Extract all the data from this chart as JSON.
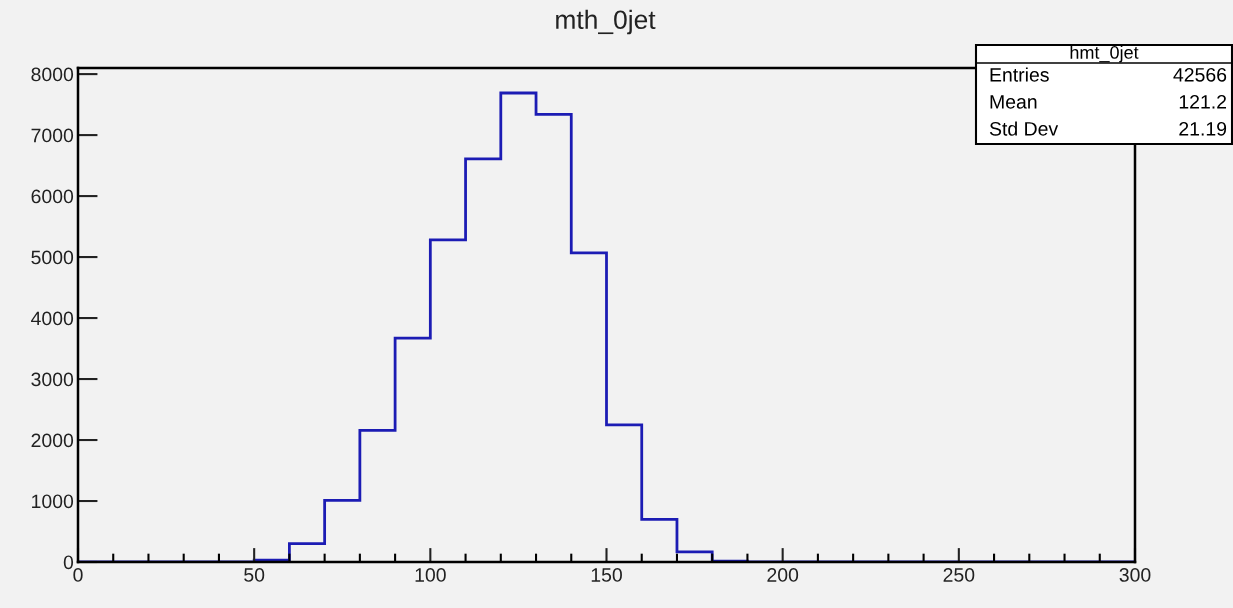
{
  "chart_data": {
    "type": "histogram",
    "title": "mth_0jet",
    "bins": [
      0,
      10,
      20,
      30,
      40,
      50,
      60,
      70,
      80,
      90,
      100,
      110,
      120,
      130,
      140,
      150,
      160,
      170,
      180,
      190,
      200,
      210,
      220,
      230,
      240,
      250,
      260,
      270,
      280,
      290,
      300
    ],
    "values": [
      0,
      0,
      0,
      0,
      0,
      30,
      300,
      1010,
      2160,
      3670,
      5280,
      6610,
      7690,
      7340,
      5070,
      2250,
      700,
      165,
      15,
      0,
      0,
      0,
      0,
      0,
      0,
      0,
      0,
      0,
      0,
      0
    ],
    "color": "#1c1cb4",
    "xlim": [
      0,
      300
    ],
    "xticks": [
      0,
      50,
      100,
      150,
      200,
      250,
      300
    ],
    "ylim": [
      0,
      8100
    ],
    "yticks": [
      0,
      1000,
      2000,
      3000,
      4000,
      5000,
      6000,
      7000,
      8000
    ],
    "grid": false,
    "legend": false,
    "annotations": [
      "hmt_0jet",
      "Entries",
      "42566",
      "Mean",
      "121.2",
      "Std Dev",
      "21.19"
    ]
  }
}
